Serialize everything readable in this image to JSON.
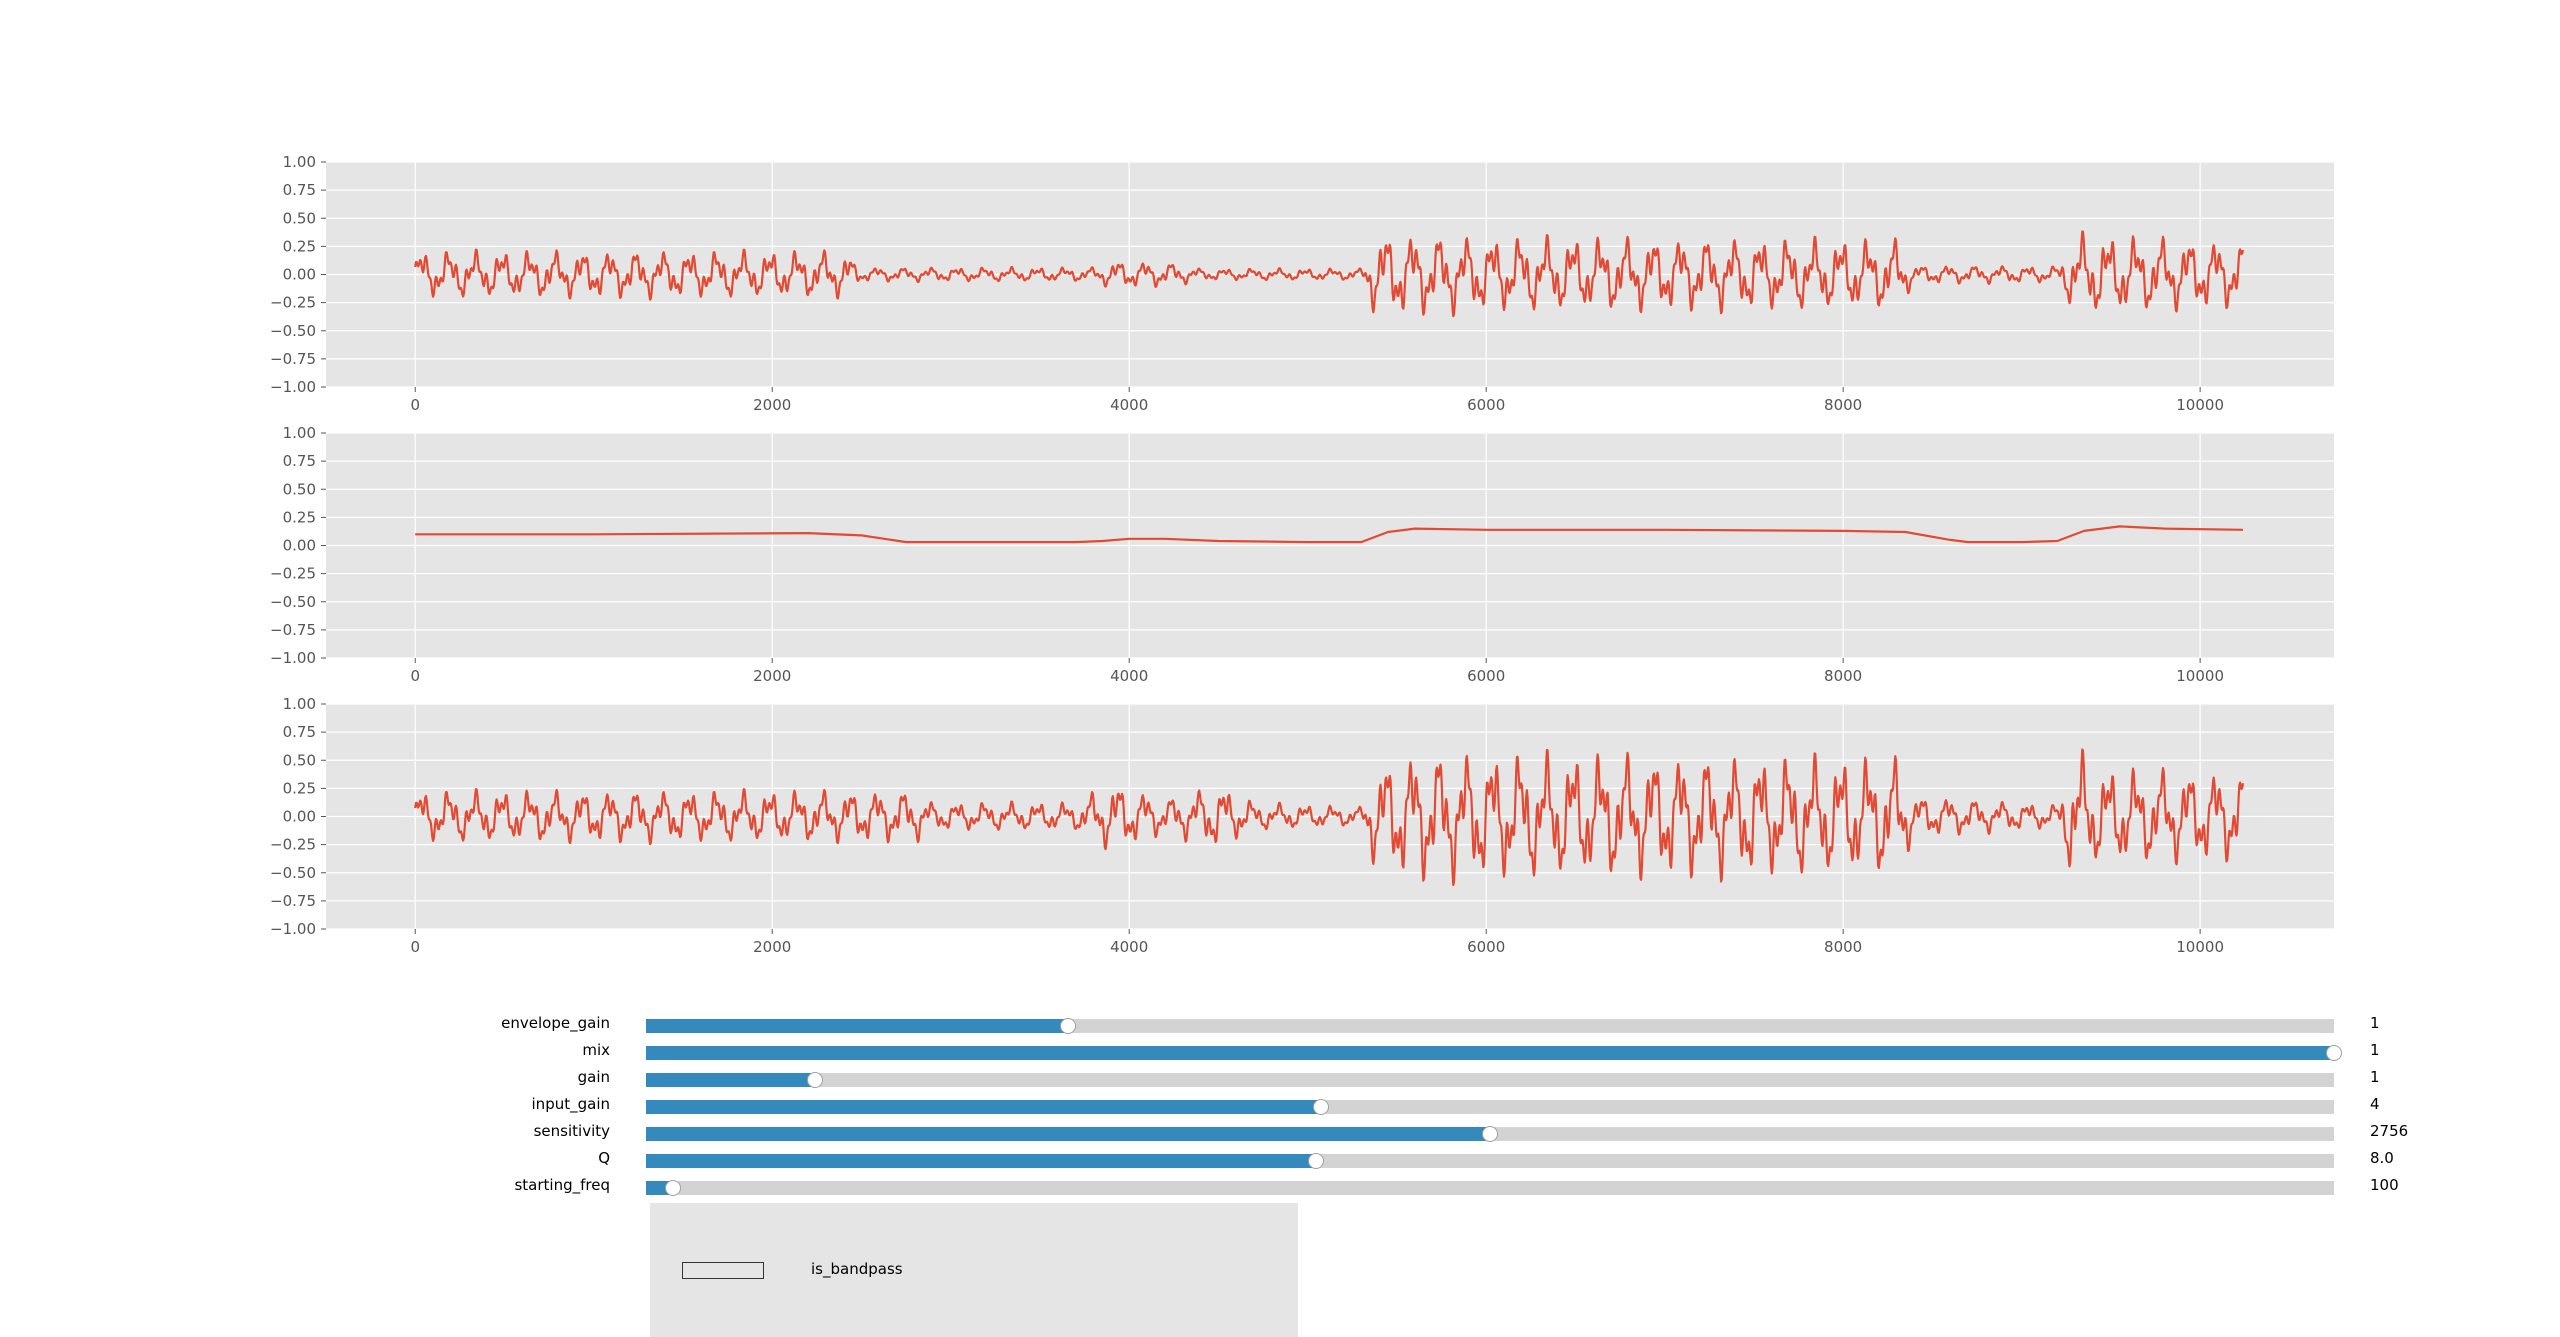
{
  "chart_data": [
    {
      "type": "line",
      "title": "",
      "xlabel": "",
      "ylabel": "",
      "xlim": [
        -500,
        10750
      ],
      "ylim": [
        -1.0,
        1.0
      ],
      "x_ticks": [
        "0",
        "2000",
        "4000",
        "6000",
        "8000",
        "10000"
      ],
      "y_ticks": [
        "1.00",
        "0.75",
        "0.50",
        "0.25",
        "0.00",
        "−0.25",
        "−0.50",
        "−0.75",
        "−1.00"
      ],
      "grid": true,
      "line_color": "#e24a33",
      "series": [
        {
          "x_range": [
            0,
            10240
          ],
          "envelope": [
            [
              0,
              0.2
            ],
            [
              2400,
              0.2
            ],
            [
              2500,
              0.06
            ],
            [
              3800,
              0.06
            ],
            [
              3900,
              0.12
            ],
            [
              4250,
              0.1
            ],
            [
              4400,
              0.05
            ],
            [
              5300,
              0.05
            ],
            [
              5380,
              0.36
            ],
            [
              6000,
              0.32
            ],
            [
              8300,
              0.3
            ],
            [
              8400,
              0.08
            ],
            [
              9200,
              0.07
            ],
            [
              9300,
              0.35
            ],
            [
              10240,
              0.28
            ]
          ]
        }
      ]
    },
    {
      "type": "line",
      "title": "",
      "xlabel": "",
      "ylabel": "",
      "xlim": [
        -500,
        10750
      ],
      "ylim": [
        -1.0,
        1.0
      ],
      "x_ticks": [
        "0",
        "2000",
        "4000",
        "6000",
        "8000",
        "10000"
      ],
      "y_ticks": [
        "1.00",
        "0.75",
        "0.50",
        "0.25",
        "0.00",
        "−0.25",
        "−0.50",
        "−0.75",
        "−1.00"
      ],
      "grid": true,
      "line_color": "#e24a33",
      "series": [
        {
          "x": [
            0,
            1000,
            2200,
            2500,
            2750,
            3700,
            3850,
            4000,
            4200,
            4500,
            5000,
            5300,
            5450,
            5600,
            6000,
            7000,
            8000,
            8350,
            8600,
            8700,
            9000,
            9200,
            9350,
            9550,
            9800,
            10240
          ],
          "y": [
            0.1,
            0.1,
            0.11,
            0.09,
            0.03,
            0.03,
            0.04,
            0.06,
            0.06,
            0.04,
            0.03,
            0.03,
            0.12,
            0.15,
            0.14,
            0.14,
            0.13,
            0.12,
            0.05,
            0.03,
            0.03,
            0.04,
            0.13,
            0.17,
            0.15,
            0.14
          ]
        }
      ]
    },
    {
      "type": "line",
      "title": "",
      "xlabel": "",
      "ylabel": "",
      "xlim": [
        -500,
        10750
      ],
      "ylim": [
        -1.0,
        1.0
      ],
      "x_ticks": [
        "0",
        "2000",
        "4000",
        "6000",
        "8000",
        "10000"
      ],
      "y_ticks": [
        "1.00",
        "0.75",
        "0.50",
        "0.25",
        "0.00",
        "−0.25",
        "−0.50",
        "−0.75",
        "−1.00"
      ],
      "grid": true,
      "line_color": "#e24a33",
      "series": [
        {
          "x_range": [
            0,
            10240
          ],
          "envelope": [
            [
              0,
              0.22
            ],
            [
              2300,
              0.22
            ],
            [
              2800,
              0.22
            ],
            [
              2900,
              0.12
            ],
            [
              3700,
              0.12
            ],
            [
              3900,
              0.3
            ],
            [
              4200,
              0.15
            ],
            [
              4500,
              0.28
            ],
            [
              4700,
              0.12
            ],
            [
              5300,
              0.08
            ],
            [
              5380,
              0.45
            ],
            [
              5600,
              0.55
            ],
            [
              8300,
              0.5
            ],
            [
              8400,
              0.18
            ],
            [
              9200,
              0.1
            ],
            [
              9300,
              0.62
            ],
            [
              9400,
              0.42
            ],
            [
              10240,
              0.38
            ]
          ]
        }
      ]
    }
  ],
  "sliders": [
    {
      "label": "envelope_gain",
      "value_text": "1",
      "fill": 0.25
    },
    {
      "label": "mix",
      "value_text": "1",
      "fill": 1.0
    },
    {
      "label": "gain",
      "value_text": "1",
      "fill": 0.1
    },
    {
      "label": "input_gain",
      "value_text": "4",
      "fill": 0.4
    },
    {
      "label": "sensitivity",
      "value_text": "2756",
      "fill": 0.5
    },
    {
      "label": "Q",
      "value_text": "8.0",
      "fill": 0.397
    },
    {
      "label": "starting_freq",
      "value_text": "100",
      "fill": 0.016
    }
  ],
  "checkbox": {
    "label": "is_bandpass",
    "checked": false
  },
  "colors": {
    "plot_bg": "#e5e5e5",
    "grid": "#ffffff",
    "line": "#e24a33",
    "slider_fill": "#348abd",
    "slider_track": "#d3d3d3"
  }
}
